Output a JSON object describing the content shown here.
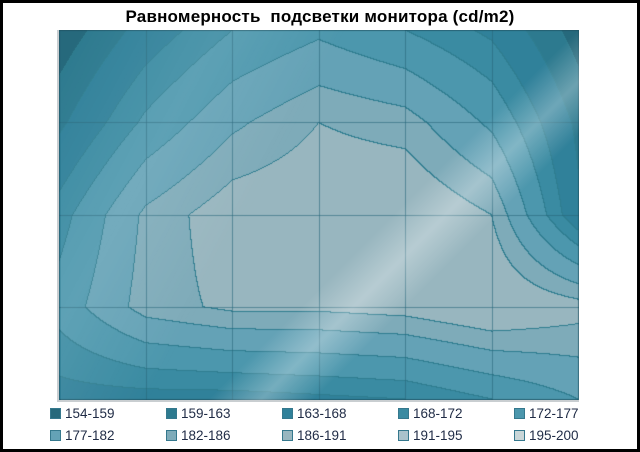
{
  "window": {
    "background_color": "#ffffff",
    "frame_color": "#000000"
  },
  "chart_data": {
    "type": "heatmap",
    "variant": "contour-surface-topview",
    "title": "Равномерность  подсветки монитора (cd/m2)",
    "value_unit": "cd/m2",
    "grid_rows": 5,
    "grid_cols": 7,
    "grid": [
      [
        156,
        165,
        172,
        176,
        172,
        167,
        157
      ],
      [
        162,
        173,
        181,
        186,
        184,
        176,
        162
      ],
      [
        170,
        183,
        189,
        190,
        191,
        186,
        164
      ],
      [
        174,
        184,
        187,
        187,
        188,
        191,
        188
      ],
      [
        166,
        166,
        166,
        167,
        168,
        172,
        177
      ]
    ],
    "band_thresholds": [
      154,
      159,
      163,
      168,
      172,
      177,
      182,
      186,
      191,
      195,
      200
    ],
    "bands": [
      {
        "label": "154-159",
        "color": "#26697c"
      },
      {
        "label": "159-163",
        "color": "#2d7a8f"
      },
      {
        "label": "163-168",
        "color": "#30819a"
      },
      {
        "label": "168-172",
        "color": "#3a8ba2"
      },
      {
        "label": "172-177",
        "color": "#4c97ad"
      },
      {
        "label": "177-182",
        "color": "#64a2b6"
      },
      {
        "label": "182-186",
        "color": "#7eabb9"
      },
      {
        "label": "186-191",
        "color": "#98b6bf"
      },
      {
        "label": "191-195",
        "color": "#a9c2cb"
      },
      {
        "label": "195-200",
        "color": "#c9d6d8"
      }
    ],
    "contour_line_color": "#2f7d90",
    "gridline_color": "rgba(40,104,124,0.6)",
    "plot_border_color": "rgba(30,80,95,0.65)",
    "legend_position": "bottom",
    "legend_rows": 2,
    "legend_text_color": "#1f2b45"
  }
}
